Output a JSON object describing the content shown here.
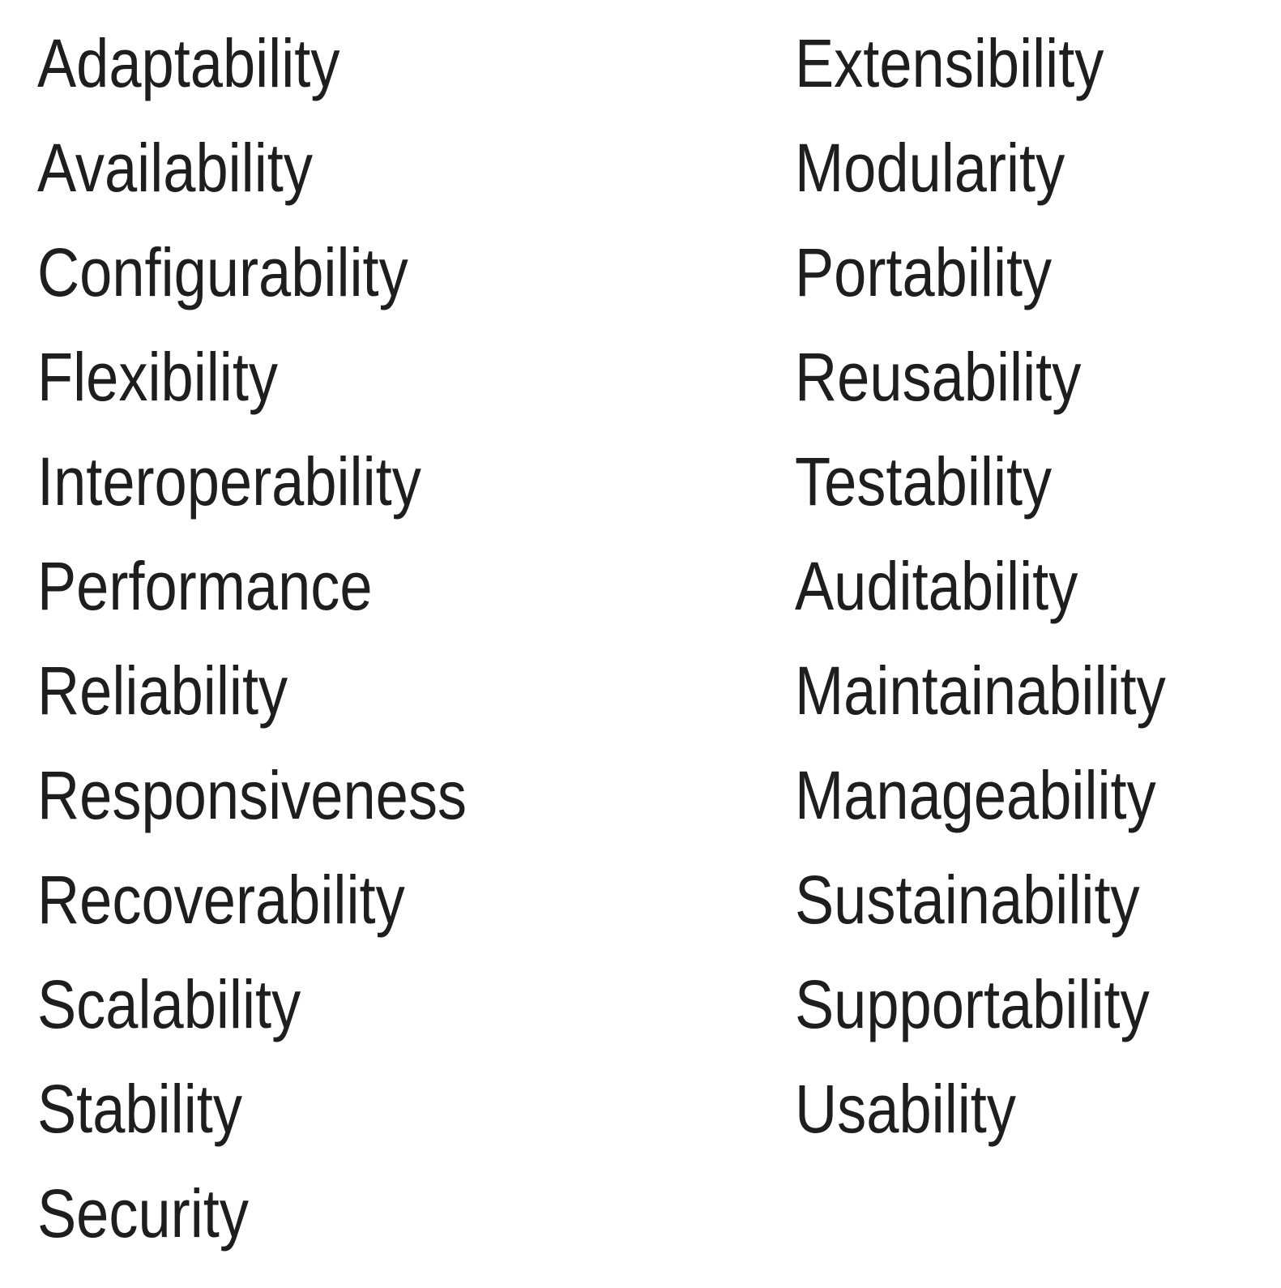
{
  "left_column": [
    "Adaptability",
    "Availability",
    "Configurability",
    "Flexibility",
    "Interoperability",
    "Performance",
    "Reliability",
    "Responsiveness",
    "Recoverability",
    "Scalability",
    "Stability",
    "Security"
  ],
  "right_column": [
    "Extensibility",
    "Modularity",
    "Portability",
    "Reusability",
    "Testability",
    "Auditability",
    "Maintainability",
    "Manageability",
    "Sustainability",
    "Supportability",
    "Usability"
  ],
  "colors": {
    "text": "#1e1e1e",
    "background": "#ffffff"
  }
}
